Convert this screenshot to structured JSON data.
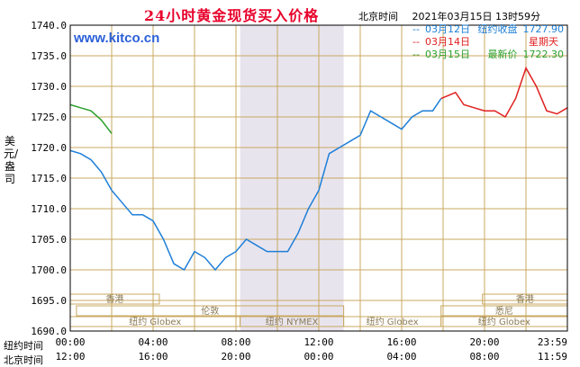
{
  "title": "24小时黄金现货买入价格",
  "watermark": "www.kitco.cn",
  "header": {
    "timezone_label": "北京时间",
    "datetime": "2021年03月15日 13时59分"
  },
  "legend": [
    {
      "date": "03月12日",
      "label": "纽约收盘",
      "value": "1727.90",
      "color": "#1e7fd8"
    },
    {
      "date": "03月14日",
      "label": "星期天",
      "value": "",
      "color": "#e02020"
    },
    {
      "date": "03月15日",
      "label": "最新价",
      "value": "1722.30",
      "color": "#2ca02c"
    }
  ],
  "ylabel": "美元/盎司",
  "x_rows": [
    {
      "label": "纽约时间",
      "ticks": [
        "00:00",
        "04:00",
        "08:00",
        "12:00",
        "16:00",
        "20:00",
        "23:59"
      ]
    },
    {
      "label": "北京时间",
      "ticks": [
        "12:00",
        "16:00",
        "20:00",
        "00:00",
        "04:00",
        "08:00",
        "11:59"
      ]
    }
  ],
  "sessions": [
    {
      "name": "香港",
      "row": 0
    },
    {
      "name": "伦敦",
      "row": 1
    },
    {
      "name": "纽约 Globex",
      "row": 2
    },
    {
      "name": "纽约 NYMEX",
      "row": 2
    },
    {
      "name": "纽约 Globex",
      "row": 2
    },
    {
      "name": "悉尼",
      "row": 1
    },
    {
      "name": "香港",
      "row": 0
    },
    {
      "name": "纽约 Globex",
      "row": 2
    }
  ],
  "colors": {
    "grid": "#c8a860",
    "frame": "#000000",
    "highlight": "#e8e4ee"
  },
  "chart_data": {
    "type": "line",
    "xlabel": "",
    "ylabel": "美元/盎司",
    "x_unit": "hours (New York time)",
    "xlim": [
      0,
      24
    ],
    "ylim": [
      1690,
      1740
    ],
    "yticks": [
      1690,
      1695,
      1700,
      1705,
      1710,
      1715,
      1720,
      1725,
      1730,
      1735,
      1740
    ],
    "highlight_hours": [
      8.2,
      13.2
    ],
    "series": [
      {
        "name": "03月12日",
        "color": "#1e7fd8",
        "x": [
          0,
          0.5,
          1.0,
          1.5,
          2.0,
          2.5,
          3.0,
          3.5,
          4.0,
          4.5,
          5.0,
          5.5,
          6.0,
          6.5,
          7.0,
          7.5,
          8.0,
          8.5,
          9.0,
          9.5,
          10.0,
          10.5,
          11.0,
          11.5,
          12.0,
          12.5,
          13.0,
          13.5,
          14.0,
          14.5,
          15.0,
          15.5,
          16.0,
          16.5,
          17.0,
          17.5,
          17.9
        ],
        "y": [
          1719.5,
          1719,
          1718,
          1716,
          1713,
          1711,
          1709,
          1709,
          1708,
          1705,
          1701,
          1700,
          1703,
          1702,
          1700,
          1702,
          1703,
          1705,
          1704,
          1703,
          1703,
          1703,
          1706,
          1710,
          1713,
          1719,
          1720,
          1721,
          1722,
          1726,
          1725,
          1724,
          1723,
          1725,
          1726,
          1726,
          1728
        ]
      },
      {
        "name": "03月14日",
        "color": "#e02020",
        "x": [
          17.9,
          18.6,
          19.0,
          19.5,
          20.0,
          20.5,
          21.0,
          21.5,
          22.0,
          22.5,
          23.0,
          23.5,
          24.0
        ],
        "y": [
          1728,
          1729,
          1727,
          1726.5,
          1726,
          1726,
          1725,
          1728,
          1733,
          1730,
          1726,
          1725.5,
          1726.5
        ]
      },
      {
        "name": "03月15日",
        "color": "#2ca02c",
        "x": [
          0,
          0.5,
          1.0,
          1.5,
          2.0
        ],
        "y": [
          1727,
          1726.5,
          1726,
          1724.5,
          1722.3
        ]
      }
    ]
  }
}
